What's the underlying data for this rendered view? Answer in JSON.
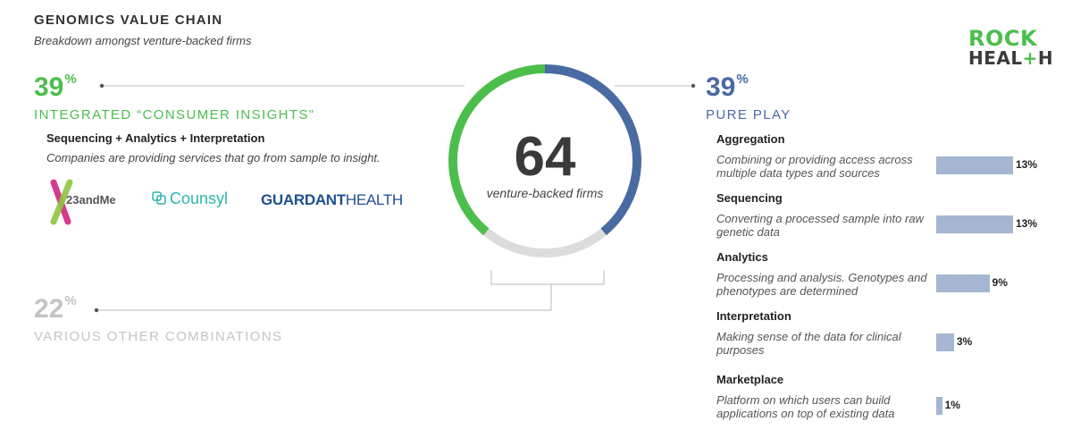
{
  "header": {
    "title": "GENOMICS VALUE CHAIN",
    "subtitle": "Breakdown amongst venture-backed firms"
  },
  "logo": {
    "line1": "ROCK",
    "line2a": "HEAL",
    "line2plus": "+",
    "line2b": "H"
  },
  "integrated": {
    "percent": "39",
    "percent_sign": "%",
    "label": "INTEGRATED “CONSUMER INSIGHTS”",
    "heading": "Sequencing + Analytics + Interpretation",
    "description": "Companies are providing services that go from sample to insight.",
    "brands": {
      "b23": "23andMe",
      "counsyl": "Counsyl",
      "guardant_bold": "GUARDANT",
      "guardant_light": "HEALTH"
    }
  },
  "other": {
    "percent": "22",
    "percent_sign": "%",
    "label": "VARIOUS OTHER COMBINATIONS"
  },
  "pure_play": {
    "percent": "39",
    "percent_sign": "%",
    "label": "PURE PLAY"
  },
  "donut": {
    "number": "64",
    "caption": "venture-backed firms"
  },
  "colors": {
    "green": "#4cbe4c",
    "blue": "#4a6aa2",
    "grey": "#c4c4c4",
    "bar": "#a4b6d2"
  },
  "chart_data": [
    {
      "type": "pie",
      "style": "donut",
      "total_label": "64",
      "slices": [
        {
          "name": "PURE PLAY",
          "value": 39,
          "color": "#4a6aa2"
        },
        {
          "name": "VARIOUS OTHER COMBINATIONS",
          "value": 22,
          "color": "#dcdcdc"
        },
        {
          "name": "INTEGRATED “CONSUMER INSIGHTS”",
          "value": 39,
          "color": "#4cbe4c"
        }
      ]
    },
    {
      "type": "bar",
      "orientation": "horizontal",
      "categories": [
        "Aggregation",
        "Sequencing",
        "Analytics",
        "Interpretation",
        "Marketplace"
      ],
      "descriptions": [
        "Combining or providing access across multiple data types and sources",
        "Converting a processed sample into raw genetic data",
        "Processing and analysis. Genotypes and phenotypes are determined",
        "Making sense of the data for clinical purposes",
        "Platform on which users can build applications on top of existing data"
      ],
      "values": [
        13,
        13,
        9,
        3,
        1
      ],
      "value_labels": [
        "13%",
        "13%",
        "9%",
        "3%",
        "1%"
      ]
    }
  ]
}
